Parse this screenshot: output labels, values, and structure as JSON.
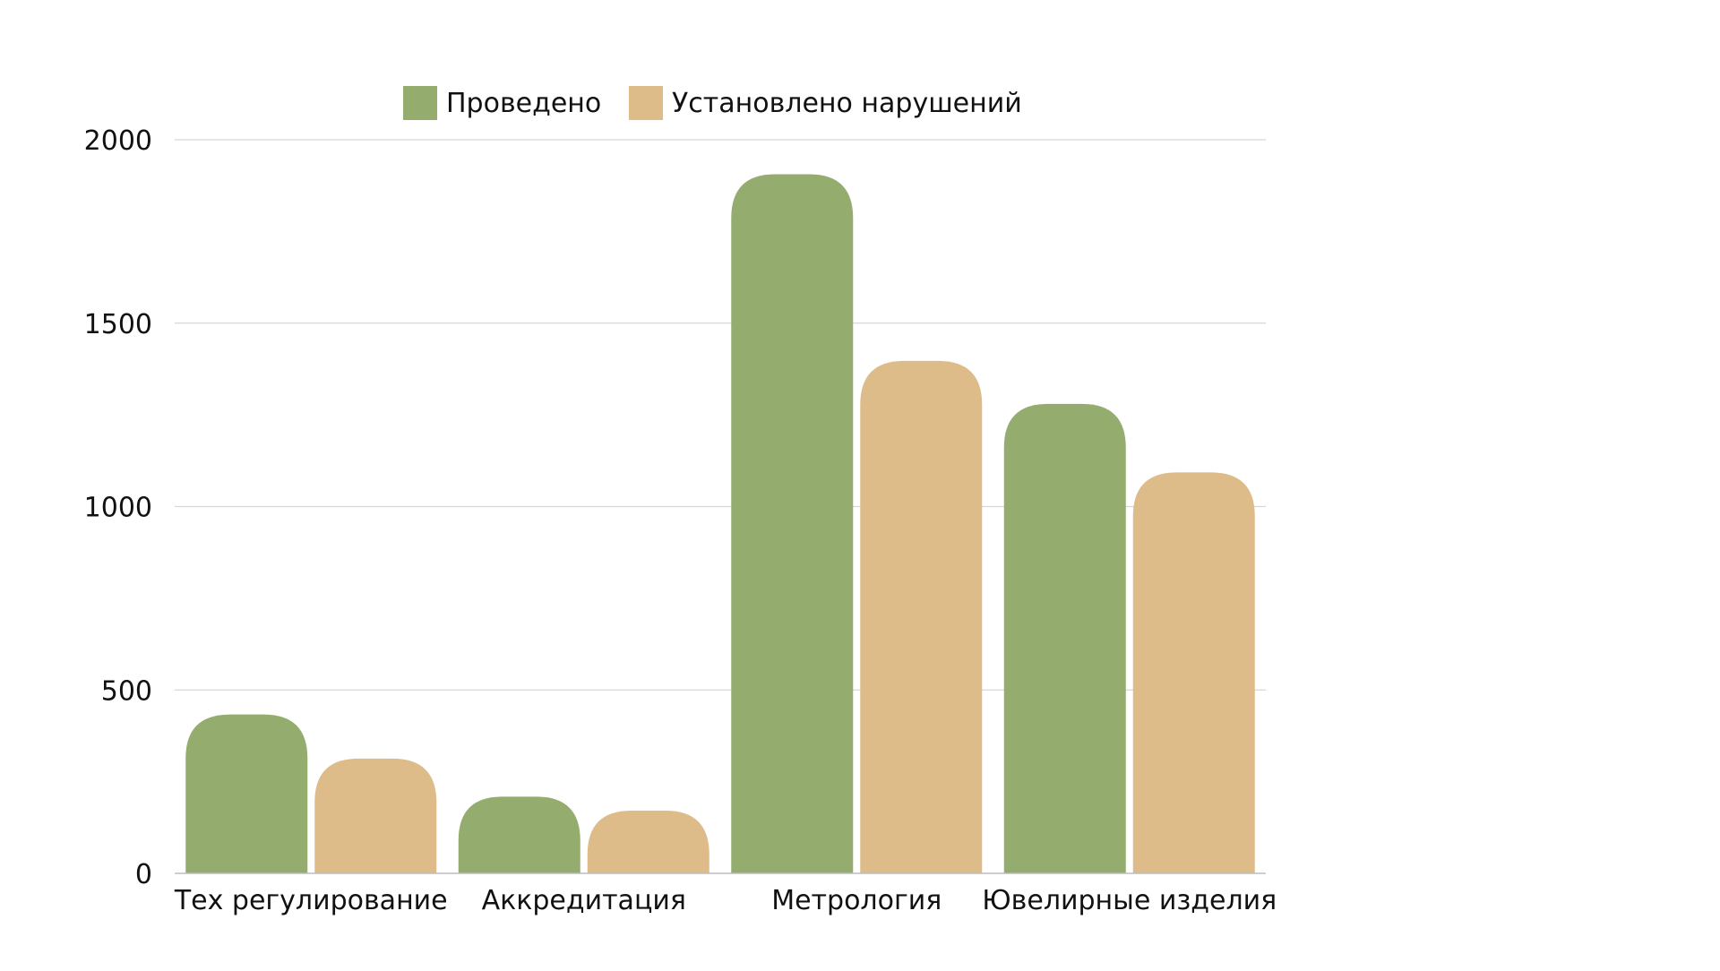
{
  "chart_data": {
    "type": "bar",
    "title": "",
    "xlabel": "",
    "ylabel": "",
    "categories": [
      "Тех регулирование",
      "Аккредитация",
      "Метрология",
      "Ювелирные изделия"
    ],
    "series": [
      {
        "name": "Проведено",
        "color": "#94ad6f",
        "values": [
          433,
          209,
          1906,
          1280
        ]
      },
      {
        "name": "Установлено нарушений",
        "color": "#ddbc8a",
        "values": [
          313,
          171,
          1397,
          1093
        ]
      }
    ],
    "ylim": [
      0,
      2000
    ],
    "yticks": [
      0,
      500,
      1000,
      1500,
      2000
    ],
    "grid": true,
    "legend_position": "top"
  }
}
